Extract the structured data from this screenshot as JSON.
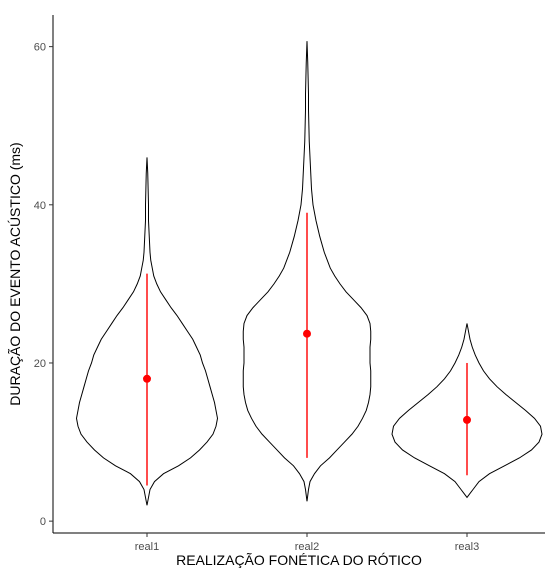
{
  "chart_data": {
    "type": "violin",
    "title": "",
    "xlabel": "REALIZAÇÃO FONÉTICA DO RÓTICO",
    "ylabel": "DURAÇÃO DO EVENTO ACÚSTICO (ms)",
    "ylim": [
      -1.5,
      64
    ],
    "yticks": [
      0,
      20,
      40,
      60
    ],
    "categories": [
      "real1",
      "real2",
      "real3"
    ],
    "grid": false,
    "legend": "none",
    "colors": {
      "violin_stroke": "#000000",
      "summary": "#ff0000",
      "axis": "#000000"
    },
    "series": [
      {
        "category": "real1",
        "mean": 18.0,
        "interval": [
          4.5,
          31.3
        ],
        "density_profile": [
          [
            2.0,
            0.0
          ],
          [
            3.0,
            0.02
          ],
          [
            4.0,
            0.04
          ],
          [
            5.0,
            0.1
          ],
          [
            6.0,
            0.22
          ],
          [
            7.0,
            0.42
          ],
          [
            8.0,
            0.58
          ],
          [
            9.0,
            0.7
          ],
          [
            10.0,
            0.8
          ],
          [
            11.0,
            0.88
          ],
          [
            12.0,
            0.92
          ],
          [
            13.0,
            0.94
          ],
          [
            14.0,
            0.92
          ],
          [
            15.0,
            0.9
          ],
          [
            16.0,
            0.87
          ],
          [
            17.0,
            0.84
          ],
          [
            18.0,
            0.81
          ],
          [
            19.0,
            0.78
          ],
          [
            20.0,
            0.74
          ],
          [
            21.0,
            0.71
          ],
          [
            22.0,
            0.66
          ],
          [
            23.0,
            0.61
          ],
          [
            24.0,
            0.54
          ],
          [
            25.0,
            0.47
          ],
          [
            26.0,
            0.4
          ],
          [
            27.0,
            0.32
          ],
          [
            28.0,
            0.25
          ],
          [
            29.0,
            0.18
          ],
          [
            30.0,
            0.13
          ],
          [
            31.0,
            0.09
          ],
          [
            32.0,
            0.07
          ],
          [
            33.0,
            0.05
          ],
          [
            34.0,
            0.04
          ],
          [
            36.0,
            0.03
          ],
          [
            38.0,
            0.02
          ],
          [
            40.0,
            0.02
          ],
          [
            42.0,
            0.015
          ],
          [
            44.0,
            0.01
          ],
          [
            46.0,
            0.0
          ]
        ]
      },
      {
        "category": "real2",
        "mean": 23.7,
        "interval": [
          8.0,
          39.0
        ],
        "density_profile": [
          [
            2.5,
            0.0
          ],
          [
            4.0,
            0.02
          ],
          [
            5.0,
            0.04
          ],
          [
            6.0,
            0.1
          ],
          [
            7.0,
            0.18
          ],
          [
            8.0,
            0.3
          ],
          [
            9.0,
            0.4
          ],
          [
            10.0,
            0.5
          ],
          [
            11.0,
            0.6
          ],
          [
            12.0,
            0.68
          ],
          [
            13.0,
            0.74
          ],
          [
            14.0,
            0.79
          ],
          [
            15.0,
            0.82
          ],
          [
            16.0,
            0.84
          ],
          [
            17.0,
            0.85
          ],
          [
            18.0,
            0.85
          ],
          [
            19.0,
            0.85
          ],
          [
            20.0,
            0.84
          ],
          [
            21.0,
            0.84
          ],
          [
            22.0,
            0.84
          ],
          [
            23.0,
            0.85
          ],
          [
            24.0,
            0.85
          ],
          [
            25.0,
            0.84
          ],
          [
            26.0,
            0.8
          ],
          [
            27.0,
            0.72
          ],
          [
            28.0,
            0.62
          ],
          [
            29.0,
            0.52
          ],
          [
            30.0,
            0.44
          ],
          [
            31.0,
            0.37
          ],
          [
            32.0,
            0.31
          ],
          [
            34.0,
            0.23
          ],
          [
            36.0,
            0.17
          ],
          [
            38.0,
            0.12
          ],
          [
            40.0,
            0.08
          ],
          [
            42.0,
            0.06
          ],
          [
            44.0,
            0.05
          ],
          [
            46.0,
            0.04
          ],
          [
            48.0,
            0.03
          ],
          [
            50.0,
            0.025
          ],
          [
            52.0,
            0.02
          ],
          [
            54.0,
            0.02
          ],
          [
            56.0,
            0.015
          ],
          [
            58.0,
            0.01
          ],
          [
            60.7,
            0.0
          ]
        ]
      },
      {
        "category": "real3",
        "mean": 12.8,
        "interval": [
          5.8,
          20.0
        ],
        "density_profile": [
          [
            3.0,
            0.0
          ],
          [
            3.5,
            0.04
          ],
          [
            4.0,
            0.08
          ],
          [
            5.0,
            0.16
          ],
          [
            6.0,
            0.3
          ],
          [
            7.0,
            0.5
          ],
          [
            8.0,
            0.7
          ],
          [
            9.0,
            0.86
          ],
          [
            10.0,
            0.96
          ],
          [
            11.0,
            1.0
          ],
          [
            12.0,
            0.98
          ],
          [
            13.0,
            0.9
          ],
          [
            14.0,
            0.78
          ],
          [
            15.0,
            0.65
          ],
          [
            16.0,
            0.52
          ],
          [
            17.0,
            0.4
          ],
          [
            18.0,
            0.3
          ],
          [
            19.0,
            0.22
          ],
          [
            20.0,
            0.16
          ],
          [
            21.0,
            0.11
          ],
          [
            22.0,
            0.07
          ],
          [
            23.0,
            0.04
          ],
          [
            24.0,
            0.02
          ],
          [
            25.0,
            0.0
          ]
        ]
      }
    ]
  }
}
